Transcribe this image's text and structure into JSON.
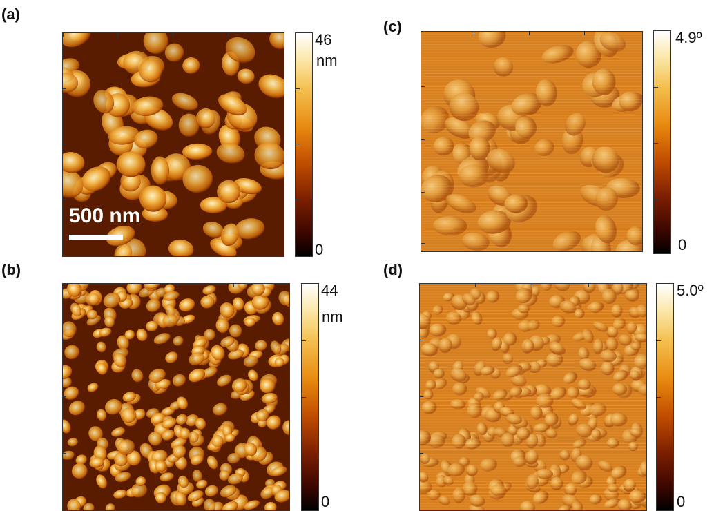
{
  "panels": [
    {
      "label": "(a)",
      "colorbar": {
        "max": "46",
        "unit": "nm",
        "min": "0"
      },
      "scale_bar": "500 nm"
    },
    {
      "label": "(b)",
      "colorbar": {
        "max": "44",
        "unit": "nm",
        "min": "0"
      }
    },
    {
      "label": "(c)",
      "colorbar": {
        "max": "4.9º",
        "min": "0"
      }
    },
    {
      "label": "(d)",
      "colorbar": {
        "max": "5.0º",
        "min": "0"
      }
    }
  ],
  "colors": {
    "colormap": [
      "#000000",
      "#3a0600",
      "#7a1e00",
      "#c24e00",
      "#e88a10",
      "#f4c050",
      "#fbe7a8",
      "#ffffff"
    ],
    "scale_bar": "#ffffff",
    "frame": "#333333"
  }
}
